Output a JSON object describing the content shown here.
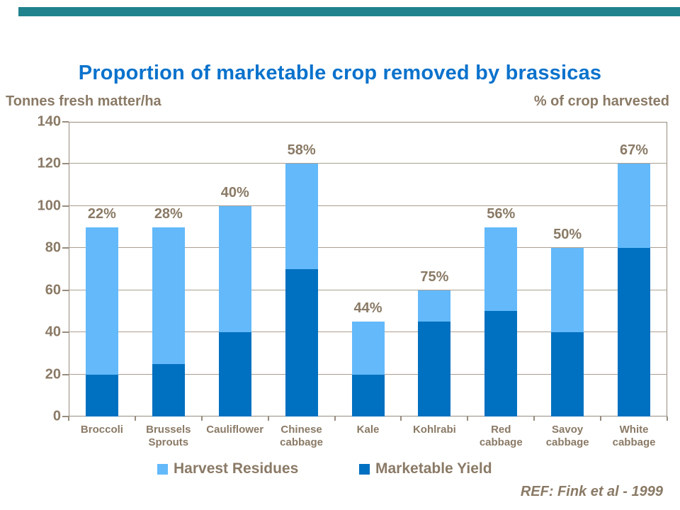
{
  "page": {
    "title": "Proportion of marketable crop removed by brassicas",
    "left_axis_label": "Tonnes fresh matter/ha",
    "right_axis_label": "% of crop harvested",
    "reference": "REF: Fink et al - 1999"
  },
  "colors": {
    "accent_teal": "#20828c",
    "title_blue": "#0a72cc",
    "text_brown": "#8a7a66",
    "grid_line": "#ab9f91",
    "frame_line": "#978d7f",
    "harvest_residues_blue": "#63b9fa",
    "marketable_yield_blue": "#0070c0"
  },
  "chart_data": {
    "type": "bar",
    "stacked": true,
    "title": "Proportion of marketable crop removed by brassicas",
    "ylabel": "Tonnes fresh matter/ha",
    "y2label": "% of crop harvested",
    "categories": [
      "Broccoli",
      "Brussels\nSprouts",
      "Cauliflower",
      "Chinese\ncabbage",
      "Kale",
      "Kohlrabi",
      "Red\ncabbage",
      "Savoy\ncabbage",
      "White\ncabbage"
    ],
    "series": [
      {
        "name": "Marketable Yield",
        "color": "#0070c0",
        "values": [
          20,
          25,
          40,
          70,
          20,
          45,
          50,
          40,
          80
        ]
      },
      {
        "name": "Harvest Residues",
        "color": "#63b9fa",
        "values": [
          70,
          65,
          60,
          50,
          25,
          15,
          40,
          40,
          40
        ]
      }
    ],
    "totals": [
      90,
      90,
      100,
      120,
      45,
      60,
      90,
      80,
      120
    ],
    "bar_labels": [
      "22%",
      "28%",
      "40%",
      "58%",
      "44%",
      "75%",
      "56%",
      "50%",
      "67%"
    ],
    "ylim": [
      0,
      140
    ],
    "yticks": [
      0,
      20,
      40,
      60,
      80,
      100,
      120,
      140
    ],
    "grid": true,
    "legend_position": "bottom",
    "legend": [
      {
        "label": "Harvest Residues",
        "color": "#63b9fa"
      },
      {
        "label": "Marketable Yield",
        "color": "#0070c0"
      }
    ],
    "annotation": "REF: Fink et al - 1999"
  }
}
